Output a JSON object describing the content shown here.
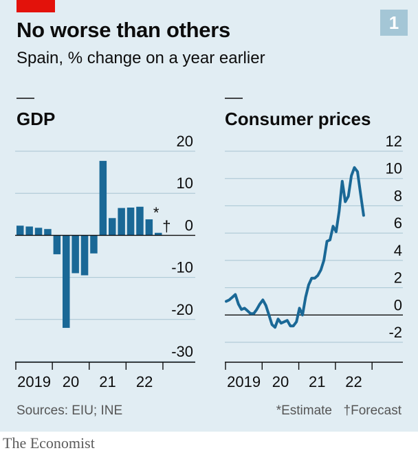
{
  "header": {
    "title": "No worse than others",
    "subtitle": "Spain, % change on a year earlier",
    "chart_number": "1"
  },
  "footer": {
    "sources": "Sources: EIU; INE",
    "estimate_note": "*Estimate",
    "forecast_note": "†Forecast",
    "brand": "The Economist"
  },
  "colors": {
    "series": "#1a6896",
    "background": "#e1edf3",
    "accent_red": "#e3120b",
    "number_box": "#a4c6d6"
  },
  "chart_data": [
    {
      "type": "bar",
      "title": "GDP",
      "categories": [
        "2019 Q1",
        "2019 Q2",
        "2019 Q3",
        "2019 Q4",
        "2020 Q1",
        "2020 Q2",
        "2020 Q3",
        "2020 Q4",
        "2021 Q1",
        "2021 Q2",
        "2021 Q3",
        "2021 Q4",
        "2022 Q1",
        "2022 Q2",
        "2022 Q3",
        "2022 Q4"
      ],
      "values": [
        2.3,
        2.1,
        1.8,
        1.5,
        -4.5,
        -22.0,
        -9.0,
        -9.5,
        -4.3,
        17.7,
        4.1,
        6.5,
        6.6,
        6.8,
        3.8,
        0.6
      ],
      "point_marks": [
        {
          "index": 14,
          "mark": "*"
        },
        {
          "index": 15,
          "mark": "†"
        }
      ],
      "x_tick_labels": [
        "2019",
        "20",
        "21",
        "22"
      ],
      "y_ticks": [
        20,
        10,
        0,
        -10,
        -20,
        -30
      ],
      "ylim": [
        -30,
        20
      ],
      "xlabel": "",
      "ylabel": "",
      "grid": true
    },
    {
      "type": "line",
      "title": "Consumer prices",
      "x": [
        "2019-01",
        "2019-02",
        "2019-03",
        "2019-04",
        "2019-05",
        "2019-06",
        "2019-07",
        "2019-08",
        "2019-09",
        "2019-10",
        "2019-11",
        "2019-12",
        "2020-01",
        "2020-02",
        "2020-03",
        "2020-04",
        "2020-05",
        "2020-06",
        "2020-07",
        "2020-08",
        "2020-09",
        "2020-10",
        "2020-11",
        "2020-12",
        "2021-01",
        "2021-02",
        "2021-03",
        "2021-04",
        "2021-05",
        "2021-06",
        "2021-07",
        "2021-08",
        "2021-09",
        "2021-10",
        "2021-11",
        "2021-12",
        "2022-01",
        "2022-02",
        "2022-03",
        "2022-04",
        "2022-05",
        "2022-06",
        "2022-07",
        "2022-08",
        "2022-09",
        "2022-10"
      ],
      "values": [
        1.0,
        1.1,
        1.3,
        1.5,
        0.8,
        0.4,
        0.5,
        0.3,
        0.1,
        0.1,
        0.4,
        0.8,
        1.1,
        0.7,
        0.0,
        -0.7,
        -0.9,
        -0.3,
        -0.6,
        -0.5,
        -0.4,
        -0.8,
        -0.8,
        -0.5,
        0.5,
        0.0,
        1.3,
        2.2,
        2.7,
        2.7,
        2.9,
        3.3,
        4.0,
        5.4,
        5.5,
        6.5,
        6.1,
        7.6,
        9.8,
        8.3,
        8.7,
        10.2,
        10.8,
        10.5,
        8.9,
        7.3
      ],
      "x_tick_labels": [
        "2019",
        "20",
        "21",
        "22"
      ],
      "y_ticks": [
        12,
        10,
        8,
        6,
        4,
        2,
        0,
        -2
      ],
      "ylim": [
        -2,
        12
      ],
      "xlabel": "",
      "ylabel": "",
      "grid": true
    }
  ]
}
